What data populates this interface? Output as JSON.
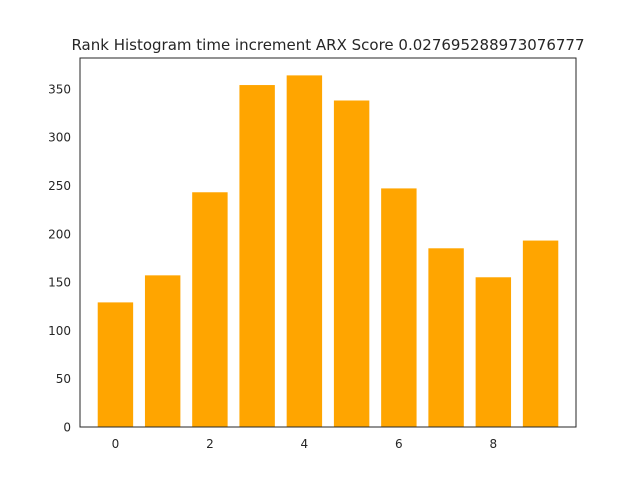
{
  "chart_data": {
    "type": "bar",
    "title": "Rank Histogram time increment ARX Score 0.027695288973076777",
    "xlabel": "",
    "ylabel": "",
    "x": [
      0,
      1,
      2,
      3,
      4,
      5,
      6,
      7,
      8,
      9
    ],
    "values": [
      129,
      157,
      243,
      354,
      364,
      338,
      247,
      185,
      155,
      193
    ],
    "xlim": [
      -0.75,
      9.75
    ],
    "ylim": [
      0,
      382
    ],
    "xticks": [
      0,
      2,
      4,
      6,
      8
    ],
    "xtick_labels": [
      "0",
      "2",
      "4",
      "6",
      "8"
    ],
    "yticks": [
      0,
      50,
      100,
      150,
      200,
      250,
      300,
      350
    ],
    "ytick_labels": [
      "0",
      "50",
      "100",
      "150",
      "200",
      "250",
      "300",
      "350"
    ],
    "bar_color": "#ffa500",
    "grid": false,
    "legend": false
  }
}
